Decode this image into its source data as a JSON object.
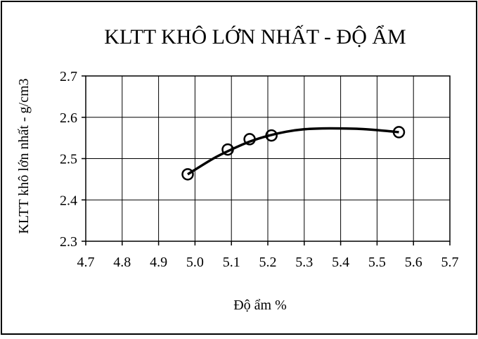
{
  "chart_data": {
    "type": "scatter",
    "title": "KLTT KHÔ LỚN NHẤT - ĐỘ ẨM",
    "xlabel": "Độ ẩm %",
    "ylabel": "KLTT khô lớn nhất - g/cm3",
    "xlim": [
      4.7,
      5.7
    ],
    "ylim": [
      2.3,
      2.7
    ],
    "x_ticks": [
      "4.7",
      "4.8",
      "4.9",
      "5.0",
      "5.1",
      "5.2",
      "5.3",
      "5.4",
      "5.5",
      "5.6",
      "5.7"
    ],
    "y_ticks": [
      "2.3",
      "2.4",
      "2.5",
      "2.6",
      "2.7"
    ],
    "grid": true,
    "legend": "none",
    "series": [
      {
        "marker": "open-circle",
        "x": [
          4.98,
          5.09,
          5.15,
          5.21,
          5.56
        ],
        "y": [
          2.462,
          2.522,
          2.547,
          2.556,
          2.564
        ]
      }
    ],
    "trendline": {
      "type": "polynomial",
      "x": [
        4.98,
        5.05,
        5.1,
        5.15,
        5.2,
        5.25,
        5.3,
        5.35,
        5.4,
        5.45,
        5.5,
        5.56
      ],
      "y": [
        2.462,
        2.5,
        2.522,
        2.541,
        2.555,
        2.565,
        2.571,
        2.573,
        2.573,
        2.572,
        2.569,
        2.564
      ]
    }
  }
}
